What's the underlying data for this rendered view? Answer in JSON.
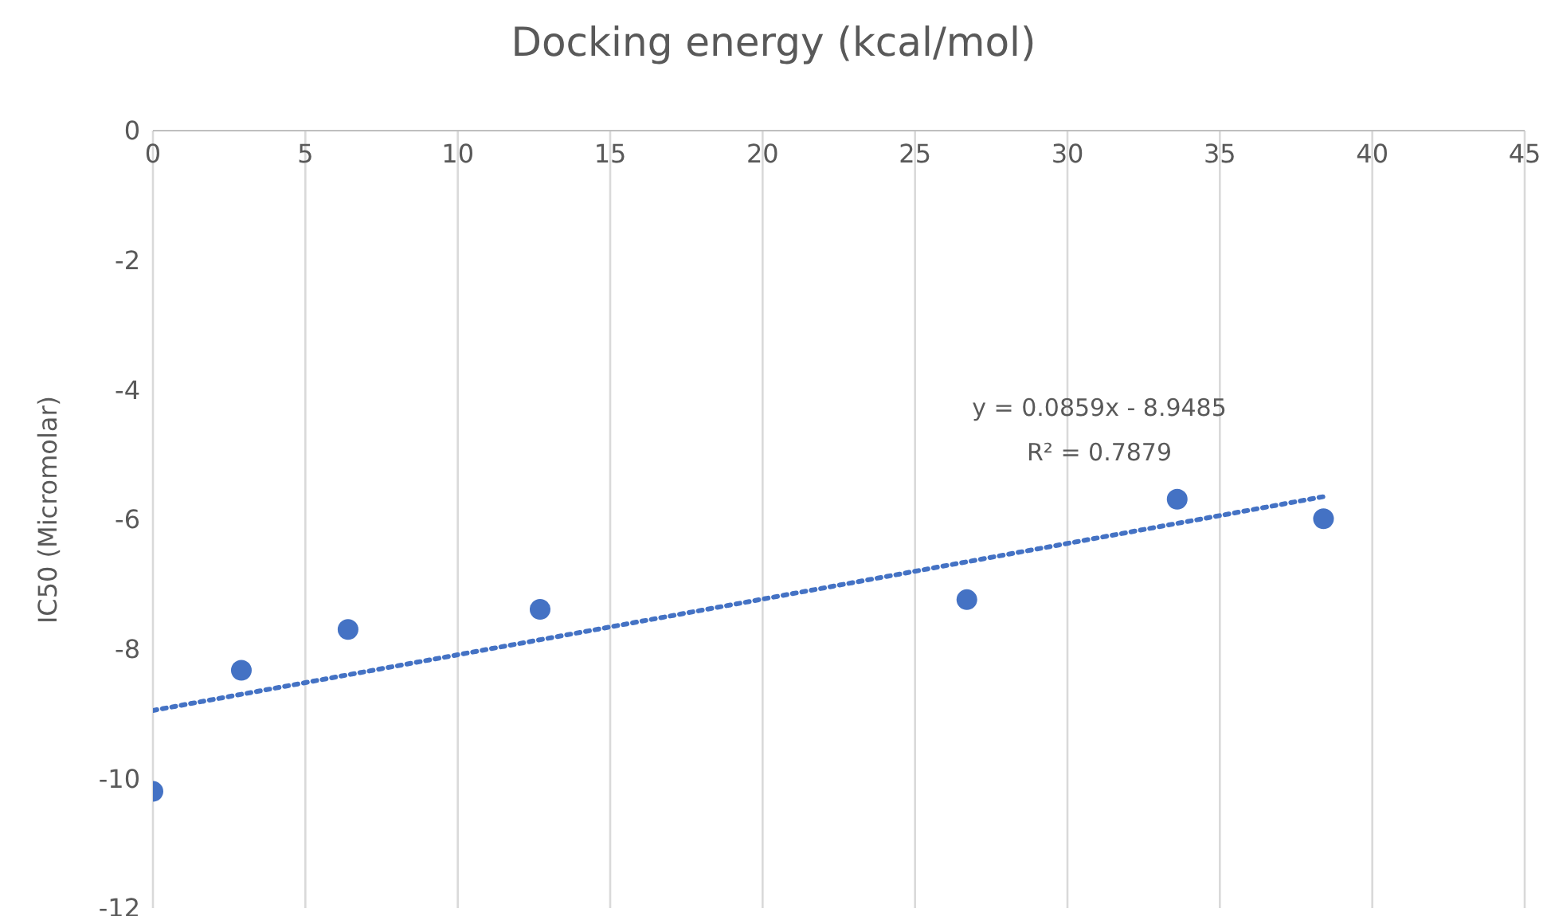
{
  "chart_data": {
    "type": "scatter",
    "title": "Docking energy (kcal/mol)",
    "ylabel": "IC50 (Micromolar)",
    "marker": "circle",
    "grid": "x",
    "xlim": [
      0,
      45
    ],
    "xticks": [
      0,
      5,
      10,
      15,
      20,
      25,
      30,
      35,
      40,
      45
    ],
    "ylim": [
      -12,
      0
    ],
    "yticks": [
      0,
      -2,
      -4,
      -6,
      -8,
      -10,
      -12
    ],
    "annotations": [
      "y = 0.0859x - 8.9485",
      "R² = 0.7879"
    ],
    "series": [
      {
        "color": "#4472c4",
        "x": [
          0,
          2.9,
          6.4,
          12.7,
          26.7,
          33.6,
          38.4
        ],
        "values": [
          -10.2,
          -8.33,
          -7.7,
          -7.39,
          -7.24,
          -5.69,
          -5.99
        ]
      },
      {
        "type": "line",
        "color": "#4472c4",
        "line_style": "dotted",
        "marker": "none",
        "x": [
          0,
          38.4
        ],
        "values": [
          -8.95,
          -5.65
        ]
      }
    ]
  }
}
